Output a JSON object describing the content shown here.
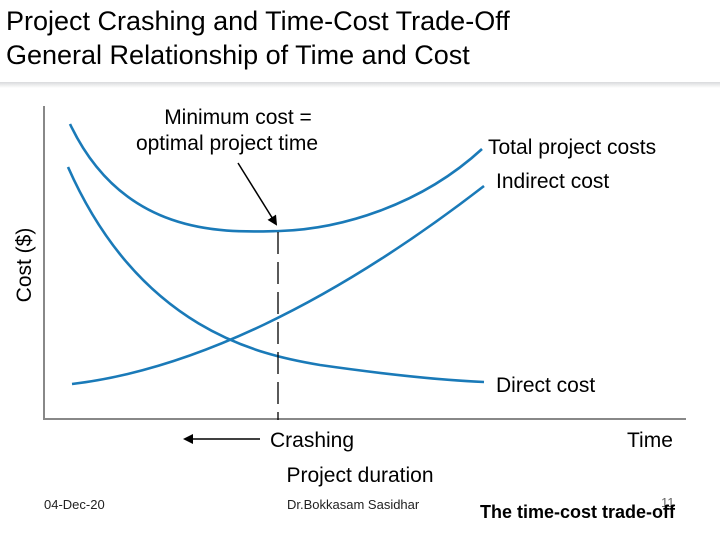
{
  "slide": {
    "title_line1": "Project Crashing and Time-Cost Trade-Off",
    "title_line2": "General Relationship of Time and Cost"
  },
  "chart_data": {
    "type": "line",
    "ylabel": "Cost ($)",
    "xlabel": "Time",
    "x_subtitle": "Project duration",
    "crashing_label": "Crashing",
    "annotation_line1": "Minimum cost =",
    "annotation_line2": "optimal project time",
    "grid": false,
    "axis_color": "#888888",
    "curve_color": "#1a7ab8",
    "series": [
      {
        "name": "Total project costs"
      },
      {
        "name": "Indirect cost"
      },
      {
        "name": "Direct cost"
      }
    ]
  },
  "footer": {
    "date": "04-Dec-20",
    "author": "Dr.Bokkasam Sasidhar",
    "page": "11",
    "caption": "The time-cost trade-off"
  }
}
